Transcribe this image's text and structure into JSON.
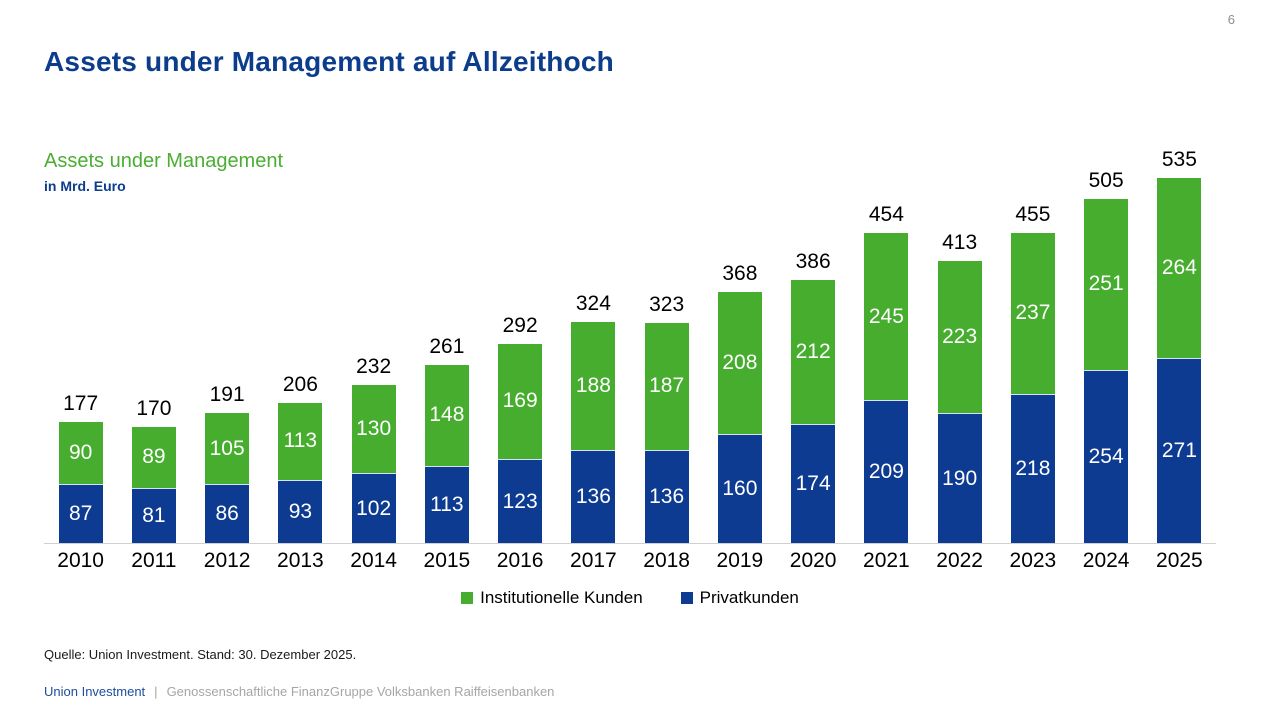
{
  "page": {
    "number": "6"
  },
  "title": "Assets under Management auf Allzeithoch",
  "chart": {
    "subtitle": "Assets under Management",
    "unit_label": "in Mrd. Euro"
  },
  "chart_data": {
    "type": "bar",
    "stacked": true,
    "title": "Assets under Management",
    "ylabel": "in Mrd. Euro",
    "xlabel": "",
    "ylim": [
      0,
      535
    ],
    "grid": false,
    "legend_position": "bottom",
    "categories": [
      "2010",
      "2011",
      "2012",
      "2013",
      "2014",
      "2015",
      "2016",
      "2017",
      "2018",
      "2019",
      "2020",
      "2021",
      "2022",
      "2023",
      "2024",
      "2025"
    ],
    "series": [
      {
        "name": "Institutionelle Kunden",
        "color": "#47ad2f",
        "values": [
          90,
          89,
          105,
          113,
          130,
          148,
          169,
          188,
          187,
          208,
          212,
          245,
          223,
          237,
          251,
          264
        ]
      },
      {
        "name": "Privatkunden",
        "color": "#0d3b91",
        "values": [
          87,
          81,
          86,
          93,
          102,
          113,
          123,
          136,
          136,
          160,
          174,
          209,
          190,
          218,
          254,
          271
        ]
      }
    ],
    "totals": [
      177,
      170,
      191,
      206,
      232,
      261,
      292,
      324,
      323,
      368,
      386,
      454,
      413,
      455,
      505,
      535
    ]
  },
  "legend": {
    "items": [
      {
        "label": "Institutionelle Kunden",
        "color": "#47ad2f"
      },
      {
        "label": "Privatkunden",
        "color": "#0d3b91"
      }
    ]
  },
  "source": "Quelle: Union Investment. Stand: 30. Dezember 2025.",
  "footer": {
    "brand": "Union Investment",
    "separator": "|",
    "tagline": "Genossenschaftliche FinanzGruppe Volksbanken Raiffeisenbanken"
  },
  "colors": {
    "title_blue": "#0c3c8c",
    "bar_blue": "#0d3b91",
    "bar_green": "#47ad2f",
    "subtitle_green": "#4aae32",
    "footer_gray": "#a6a6a6",
    "axis_gray": "#d0d0d0"
  }
}
